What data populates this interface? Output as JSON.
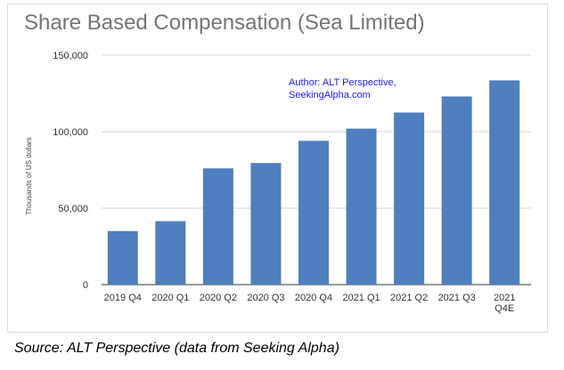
{
  "chart_data": {
    "type": "bar",
    "title": "Share Based Compensation (Sea Limited)",
    "xlabel": "",
    "ylabel": "Thousands of US dollars",
    "ylim": [
      0,
      150000
    ],
    "yticks": [
      0,
      50000,
      100000,
      150000
    ],
    "ytick_labels": [
      "0",
      "50,000",
      "100,000",
      "150,000"
    ],
    "grid": true,
    "categories": [
      [
        "2019 Q4"
      ],
      [
        "2020 Q1"
      ],
      [
        "2020 Q2"
      ],
      [
        "2020 Q3"
      ],
      [
        "2020 Q4"
      ],
      [
        "2021 Q1"
      ],
      [
        "2021 Q2"
      ],
      [
        "2021 Q3"
      ],
      [
        "2021",
        "Q4E"
      ]
    ],
    "values": [
      35000,
      41500,
      76000,
      79500,
      94000,
      102000,
      112500,
      123000,
      133500
    ],
    "bar_color": "#4e7fbe",
    "annotation": [
      "Author: ALT Perspective,",
      "SeekingAlpha.com"
    ],
    "annotation_color": "#1a1aff"
  },
  "caption": "Source: ALT Perspective (data from Seeking Alpha)"
}
